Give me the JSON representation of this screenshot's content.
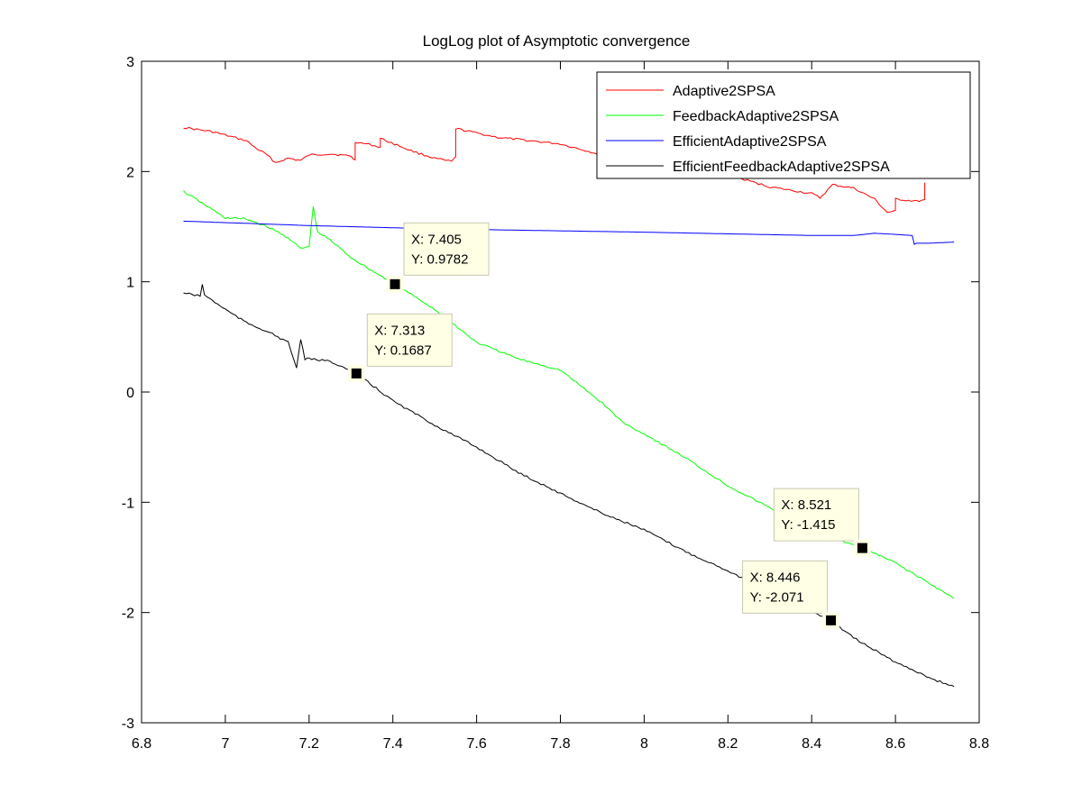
{
  "chart_data": {
    "type": "line",
    "title": "LogLog plot of Asymptotic convergence",
    "xlabel": "",
    "ylabel": "",
    "xlim": [
      6.8,
      8.8
    ],
    "ylim": [
      -3,
      3
    ],
    "xticks": [
      6.8,
      7,
      7.2,
      7.4,
      7.6,
      7.8,
      8,
      8.2,
      8.4,
      8.6,
      8.8
    ],
    "xtick_labels": [
      "6.8",
      "7",
      "7.2",
      "7.4",
      "7.6",
      "7.8",
      "8",
      "8.2",
      "8.4",
      "8.6",
      "8.8"
    ],
    "yticks": [
      -3,
      -2,
      -1,
      0,
      1,
      2,
      3
    ],
    "ytick_labels": [
      "-3",
      "-2",
      "-1",
      "0",
      "1",
      "2",
      "3"
    ],
    "grid": false,
    "legend_position": "top-right",
    "series": [
      {
        "name": "Adaptive2SPSA",
        "color": "#ff0000",
        "x": [
          6.9,
          6.97,
          7.0,
          7.05,
          7.07,
          7.1,
          7.12,
          7.15,
          7.18,
          7.2,
          7.25,
          7.3,
          7.31,
          7.31,
          7.35,
          7.37,
          7.37,
          7.45,
          7.5,
          7.54,
          7.55,
          7.55,
          7.65,
          7.7,
          7.8,
          7.9,
          7.95,
          8.0,
          8.03,
          8.05,
          8.1,
          8.2,
          8.3,
          8.4,
          8.42,
          8.45,
          8.5,
          8.55,
          8.58,
          8.6,
          8.6,
          8.65,
          8.67,
          8.67
        ],
        "y": [
          2.4,
          2.36,
          2.33,
          2.28,
          2.22,
          2.15,
          2.08,
          2.12,
          2.1,
          2.15,
          2.16,
          2.14,
          2.1,
          2.27,
          2.24,
          2.22,
          2.3,
          2.18,
          2.12,
          2.09,
          2.13,
          2.39,
          2.31,
          2.29,
          2.25,
          2.15,
          2.1,
          2.03,
          1.98,
          1.96,
          2.02,
          1.97,
          1.86,
          1.8,
          1.76,
          1.88,
          1.85,
          1.75,
          1.63,
          1.64,
          1.75,
          1.73,
          1.74,
          1.9
        ]
      },
      {
        "name": "FeedbackAdaptive2SPSA",
        "color": "#00ff00",
        "x": [
          6.9,
          6.95,
          7.0,
          7.05,
          7.1,
          7.15,
          7.18,
          7.2,
          7.21,
          7.22,
          7.25,
          7.3,
          7.35,
          7.405,
          7.45,
          7.5,
          7.55,
          7.6,
          7.7,
          7.8,
          7.85,
          7.9,
          7.95,
          8.0,
          8.1,
          8.2,
          8.3,
          8.4,
          8.521,
          8.6,
          8.7,
          8.74
        ],
        "y": [
          1.82,
          1.7,
          1.58,
          1.57,
          1.5,
          1.4,
          1.3,
          1.32,
          1.68,
          1.45,
          1.38,
          1.22,
          1.1,
          0.9782,
          0.87,
          0.75,
          0.6,
          0.45,
          0.3,
          0.2,
          0.05,
          -0.1,
          -0.28,
          -0.38,
          -0.6,
          -0.85,
          -1.05,
          -1.25,
          -1.415,
          -1.55,
          -1.78,
          -1.87
        ]
      },
      {
        "name": "EfficientAdaptive2SPSA",
        "color": "#0000ff",
        "x": [
          6.9,
          7.2,
          7.5,
          8.0,
          8.4,
          8.5,
          8.55,
          8.6,
          8.64,
          8.645,
          8.65,
          8.68,
          8.74
        ],
        "y": [
          1.55,
          1.51,
          1.48,
          1.45,
          1.42,
          1.42,
          1.44,
          1.43,
          1.42,
          1.34,
          1.35,
          1.35,
          1.36
        ]
      },
      {
        "name": "EfficientFeedbackAdaptive2SPSA",
        "color": "#000000",
        "x": [
          6.9,
          6.94,
          6.945,
          6.95,
          7.0,
          7.05,
          7.1,
          7.15,
          7.17,
          7.18,
          7.19,
          7.2,
          7.25,
          7.313,
          7.4,
          7.5,
          7.6,
          7.7,
          7.8,
          7.9,
          8.0,
          8.1,
          8.2,
          8.3,
          8.446,
          8.5,
          8.6,
          8.7,
          8.74
        ],
        "y": [
          0.9,
          0.87,
          0.98,
          0.88,
          0.75,
          0.63,
          0.55,
          0.45,
          0.22,
          0.48,
          0.3,
          0.3,
          0.28,
          0.1687,
          -0.08,
          -0.3,
          -0.5,
          -0.73,
          -0.92,
          -1.1,
          -1.25,
          -1.45,
          -1.62,
          -1.82,
          -2.071,
          -2.23,
          -2.45,
          -2.62,
          -2.67
        ]
      }
    ],
    "datatips": [
      {
        "x": 7.405,
        "y": 0.9782,
        "label_x": "X: 7.405",
        "label_y": "Y: 0.9782",
        "box_dx": 10,
        "box_dy": -68
      },
      {
        "x": 7.313,
        "y": 0.1687,
        "label_x": "X: 7.313",
        "label_y": "Y: 0.1687",
        "box_dx": 12,
        "box_dy": -66
      },
      {
        "x": 8.521,
        "y": -1.415,
        "label_x": "X: 8.521",
        "label_y": "Y: -1.415",
        "box_dx": -98,
        "box_dy": -66
      },
      {
        "x": 8.446,
        "y": -2.071,
        "label_x": "X: 8.446",
        "label_y": "Y: -2.071",
        "box_dx": -98,
        "box_dy": -66
      }
    ]
  }
}
